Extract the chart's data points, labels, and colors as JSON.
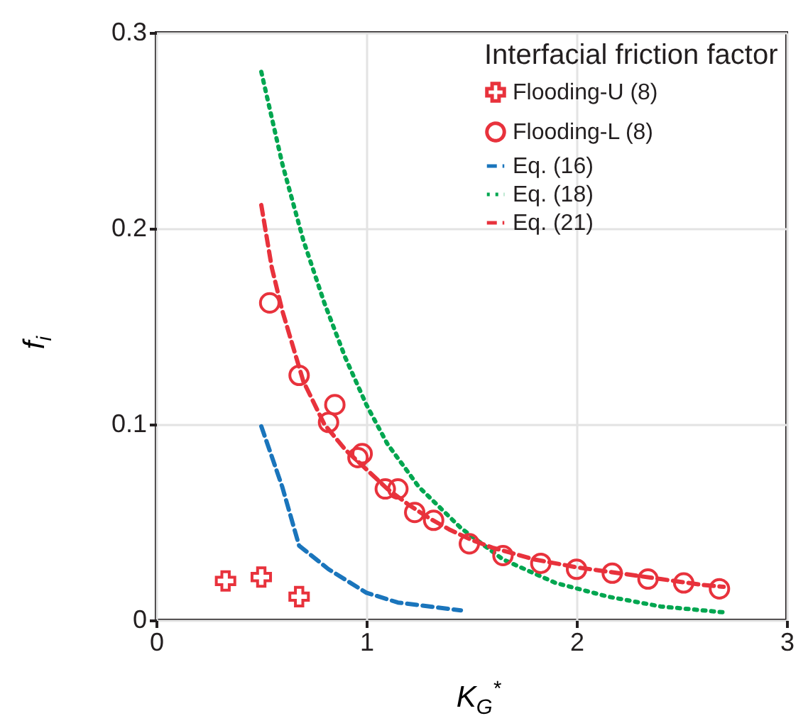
{
  "chart_data": {
    "type": "scatter",
    "legend_title": "Interfacial friction factor",
    "xlabel": "K$_{G}$$^{*}$",
    "ylabel": "f$_{i}$",
    "xlim": [
      0,
      3
    ],
    "ylim": [
      0,
      0.3
    ],
    "xticks": [
      0,
      1,
      2,
      3
    ],
    "yticks": [
      0,
      0.1,
      0.2,
      0.3
    ],
    "grid": true,
    "legend": "top right",
    "series": [
      {
        "name": "Flooding-U (8)",
        "marker": "cross",
        "color": "#e8323c",
        "x": [
          0.33,
          0.5,
          0.68
        ],
        "values": [
          0.02,
          0.022,
          0.012
        ]
      },
      {
        "name": "Flooding-L (8)",
        "marker": "circle",
        "color": "#e8323c",
        "x": [
          0.54,
          0.68,
          0.82,
          0.85,
          0.96,
          0.98,
          1.09,
          1.15,
          1.23,
          1.32,
          1.49,
          1.65,
          1.83,
          2.0,
          2.17,
          2.34,
          2.51,
          2.68
        ],
        "values": [
          0.162,
          0.125,
          0.101,
          0.11,
          0.083,
          0.085,
          0.067,
          0.067,
          0.055,
          0.051,
          0.039,
          0.033,
          0.029,
          0.026,
          0.024,
          0.021,
          0.019,
          0.016
        ]
      },
      {
        "name": "Eq. (16)",
        "type": "line",
        "line_style": "dashed",
        "color": "#1a75bc",
        "x": [
          0.5,
          0.6,
          0.68,
          0.82,
          1.0,
          1.15,
          1.45
        ],
        "values": [
          0.099,
          0.068,
          0.038,
          0.026,
          0.014,
          0.009,
          0.005
        ]
      },
      {
        "name": "Eq. (18)",
        "type": "line",
        "line_style": "dotted",
        "color": "#00a650",
        "x": [
          0.5,
          0.6,
          0.7,
          0.8,
          0.9,
          1.0,
          1.1,
          1.25,
          1.45,
          1.65,
          1.9,
          2.15,
          2.4,
          2.7
        ],
        "values": [
          0.28,
          0.233,
          0.194,
          0.162,
          0.134,
          0.11,
          0.09,
          0.068,
          0.047,
          0.031,
          0.019,
          0.012,
          0.007,
          0.004
        ]
      },
      {
        "name": "Eq. (21)",
        "type": "line",
        "line_style": "dashed",
        "color": "#e8323c",
        "x": [
          0.5,
          0.55,
          0.6,
          0.7,
          0.8,
          0.9,
          1.0,
          1.1,
          1.2,
          1.3,
          1.4,
          1.5,
          1.6,
          1.8,
          2.0,
          2.2,
          2.4,
          2.6,
          2.7
        ],
        "values": [
          0.212,
          0.18,
          0.158,
          0.122,
          0.1,
          0.087,
          0.077,
          0.067,
          0.059,
          0.052,
          0.046,
          0.041,
          0.037,
          0.031,
          0.027,
          0.024,
          0.021,
          0.018,
          0.017
        ]
      }
    ]
  }
}
